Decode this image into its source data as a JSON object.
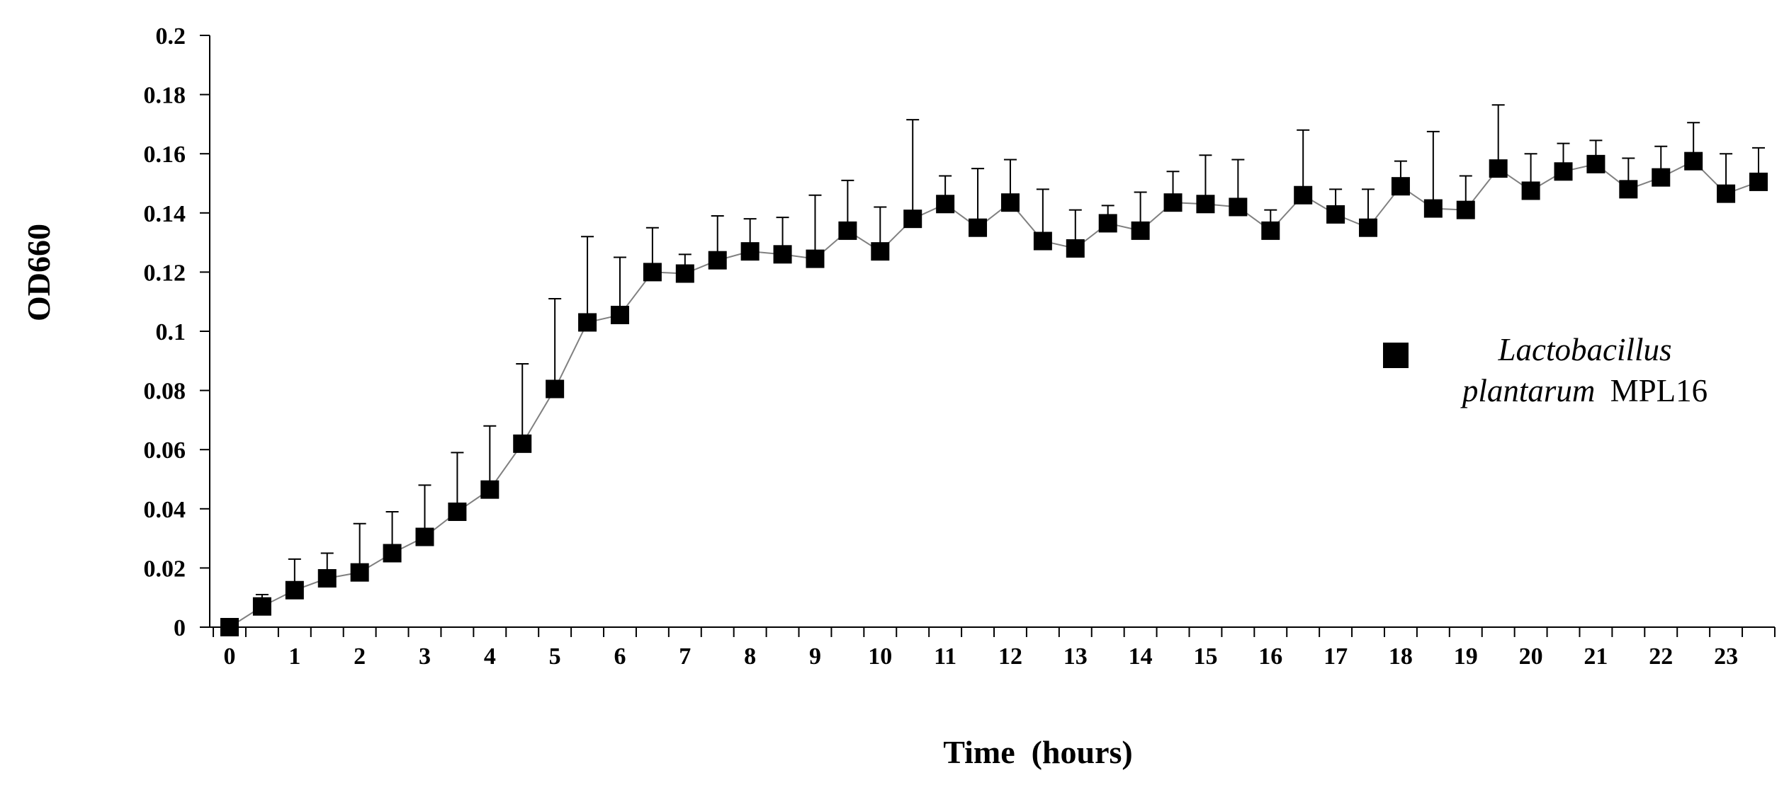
{
  "chart_data": {
    "type": "line",
    "title": "",
    "xlabel": "Time  (hours)",
    "ylabel": "OD660",
    "xlim": [
      0,
      23.5
    ],
    "ylim": [
      0,
      0.2
    ],
    "x_ticks": [
      "0",
      "1",
      "2",
      "3",
      "4",
      "5",
      "6",
      "7",
      "8",
      "9",
      "10",
      "11",
      "12",
      "13",
      "14",
      "15",
      "16",
      "17",
      "18",
      "19",
      "20",
      "21",
      "22",
      "23"
    ],
    "y_ticks": [
      "0",
      "0.02",
      "0.04",
      "0.06",
      "0.08",
      "0.1",
      "0.12",
      "0.14",
      "0.16",
      "0.18",
      "0.2"
    ],
    "grid": false,
    "legend_position": "right",
    "series": [
      {
        "name": "Lactobacillus plantarum MPL16",
        "name_parts": {
          "italic": "Lactobacillus",
          "italic2": "plantarum",
          "normal": "MPL16"
        },
        "marker": "square",
        "color": "#000000",
        "line_color": "#808080",
        "x": [
          0,
          0.5,
          1,
          1.5,
          2,
          2.5,
          3,
          3.5,
          4,
          4.5,
          5,
          5.5,
          6,
          6.5,
          7,
          7.5,
          8,
          8.5,
          9,
          9.5,
          10,
          10.5,
          11,
          11.5,
          12,
          12.5,
          13,
          13.5,
          14,
          14.5,
          15,
          15.5,
          16,
          16.5,
          17,
          17.5,
          18,
          18.5,
          19,
          19.5,
          20,
          20.5,
          21,
          21.5,
          22,
          22.5,
          23,
          23.5
        ],
        "values": [
          0,
          0.007,
          0.0125,
          0.0165,
          0.0185,
          0.025,
          0.0305,
          0.039,
          0.0465,
          0.062,
          0.0805,
          0.103,
          0.1055,
          0.12,
          0.1195,
          0.124,
          0.127,
          0.126,
          0.1245,
          0.134,
          0.127,
          0.138,
          0.143,
          0.135,
          0.1435,
          0.1305,
          0.128,
          0.1365,
          0.134,
          0.1435,
          0.143,
          0.142,
          0.134,
          0.146,
          0.1395,
          0.135,
          0.149,
          0.1415,
          0.141,
          0.155,
          0.1475,
          0.154,
          0.1565,
          0.148,
          0.152,
          0.1575,
          0.1465,
          0.1505
        ],
        "error_upper": [
          0,
          0.011,
          0.023,
          0.025,
          0.035,
          0.039,
          0.048,
          0.059,
          0.068,
          0.089,
          0.111,
          0.132,
          0.125,
          0.135,
          0.126,
          0.139,
          0.138,
          0.1385,
          0.146,
          0.151,
          0.142,
          0.1715,
          0.1525,
          0.155,
          0.158,
          0.148,
          0.141,
          0.1425,
          0.147,
          0.154,
          0.1595,
          0.158,
          0.141,
          0.168,
          0.148,
          0.148,
          0.1575,
          0.1675,
          0.1525,
          0.1765,
          0.16,
          0.1635,
          0.1645,
          0.1585,
          0.1625,
          0.1705,
          0.16,
          0.162
        ]
      }
    ]
  }
}
